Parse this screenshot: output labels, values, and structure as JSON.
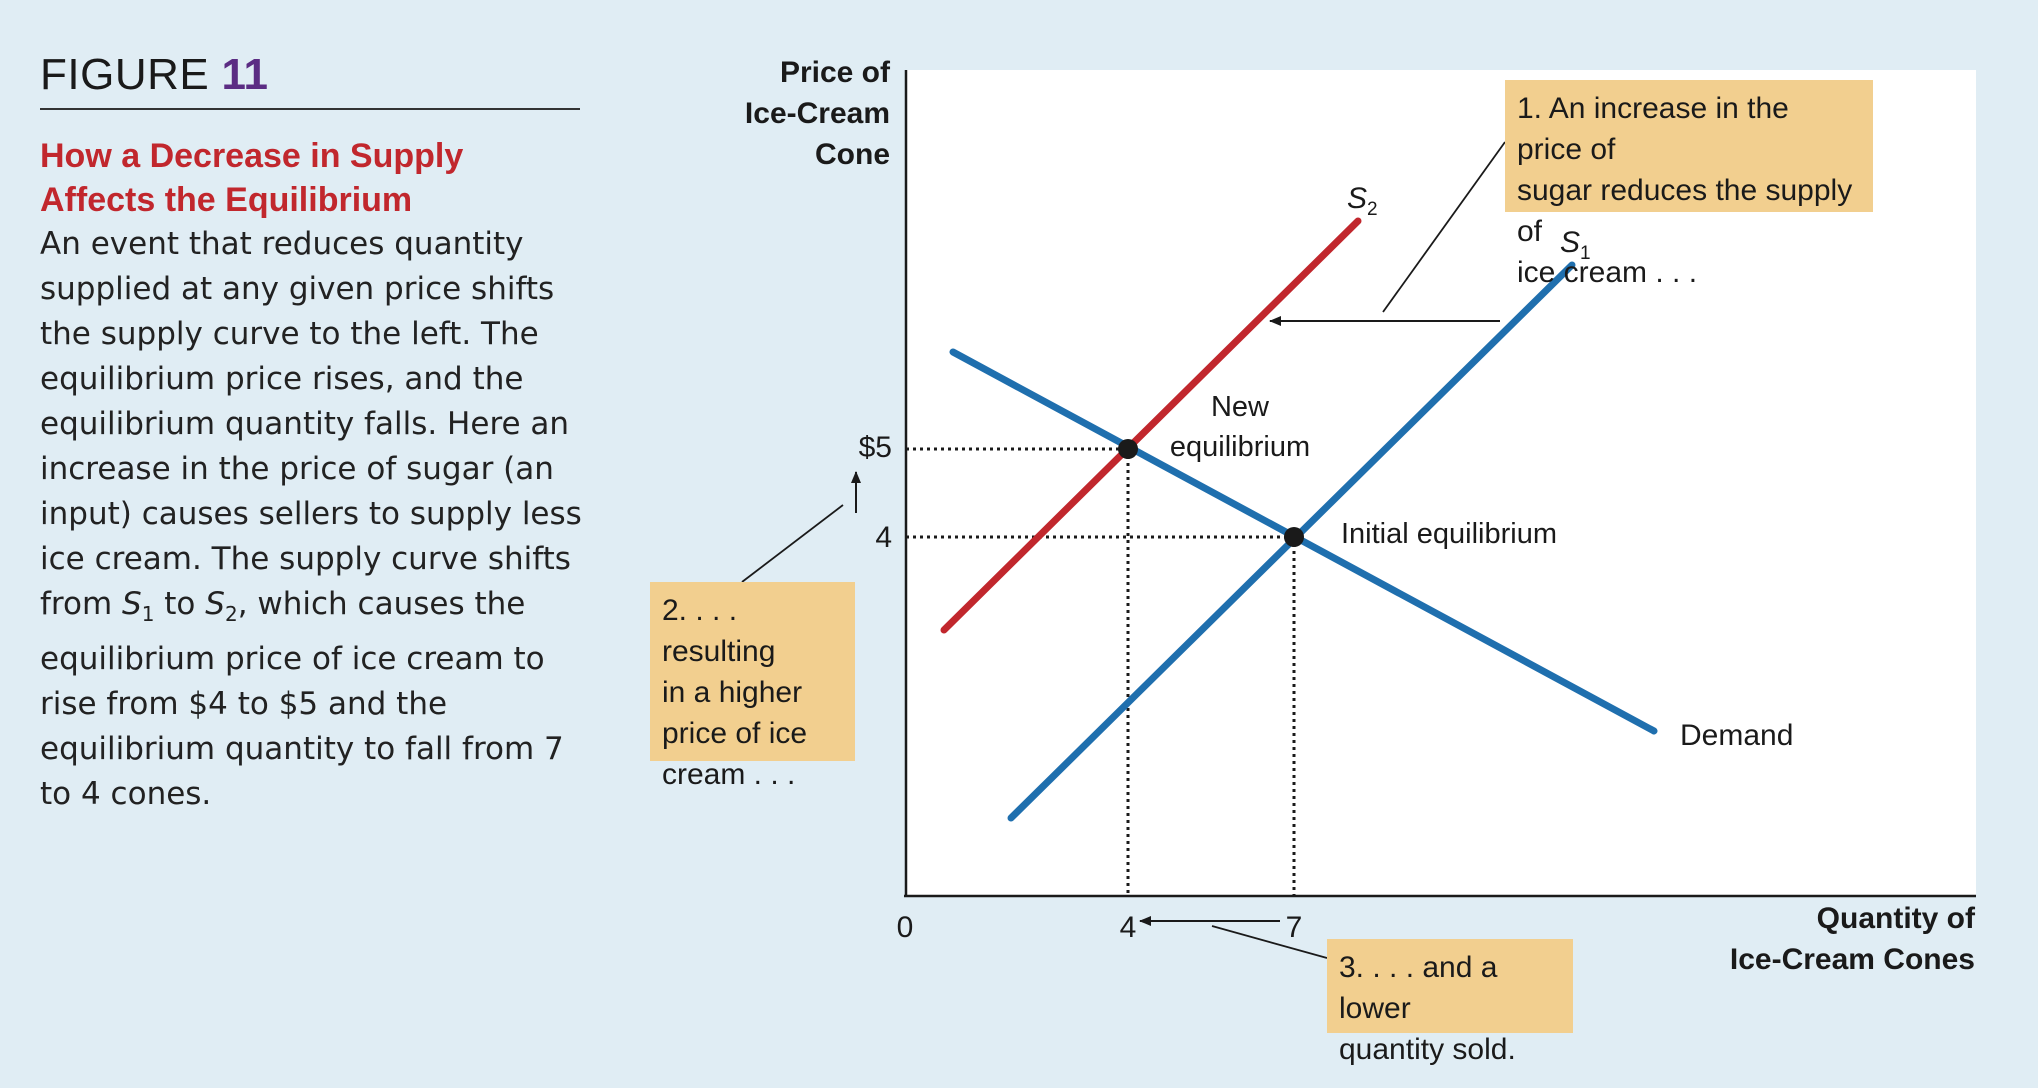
{
  "figure": {
    "label": "FIGURE",
    "number": "11",
    "title": "How a Decrease in Supply Affects the Equilibrium",
    "body_html": "An event that reduces quantity supplied at any given price shifts the supply curve to the left. The equilibrium price rises, and the equilibrium quantity falls. Here an increase in the price of sugar (an input) causes sellers to supply less ice cream. The supply curve shifts from <i>S<sub>1</sub></i> to <i>S<sub>2</sub></i>, which causes the equilibrium price of ice cream to rise from $4 to $5 and the equilibrium quantity to fall from 7 to 4 cones."
  },
  "chart_data": {
    "type": "line",
    "ylabel": "Price of Ice-Cream Cone",
    "xlabel": "Quantity of Ice-Cream Cones",
    "origin_label": "0",
    "x_ticks": [
      "4",
      "7"
    ],
    "y_ticks": [
      "$5",
      "4"
    ],
    "series": [
      {
        "name": "S2",
        "label": "S",
        "sub": "2",
        "color": "#c1272d"
      },
      {
        "name": "S1",
        "label": "S",
        "sub": "1",
        "color": "#1f6fae"
      },
      {
        "name": "Demand",
        "label": "Demand",
        "color": "#1f6fae"
      }
    ],
    "points": [
      {
        "name": "New equilibrium",
        "x": 4,
        "y": 5
      },
      {
        "name": "Initial equilibrium",
        "x": 7,
        "y": 4
      }
    ],
    "labels": {
      "new_eq_line1": "New",
      "new_eq_line2": "equilibrium",
      "initial_eq": "Initial equilibrium"
    },
    "annotations": [
      "1. An increase in the price of sugar reduces the supply of ice cream . . .",
      "2. . . . resulting in a higher price of ice cream . . .",
      "3. . . . and a lower quantity sold."
    ]
  },
  "callouts": {
    "one": [
      "1. An increase in the price of",
      "sugar reduces the supply of",
      "ice cream . . ."
    ],
    "two": [
      "2. . . . resulting",
      "in a higher",
      "price of ice",
      "cream . . ."
    ],
    "three": [
      "3. . . . and a lower",
      "quantity sold."
    ]
  },
  "axis_titles": {
    "y": [
      "Price of",
      "Ice-Cream",
      "Cone"
    ],
    "x": [
      "Quantity of",
      "Ice-Cream Cones"
    ]
  }
}
